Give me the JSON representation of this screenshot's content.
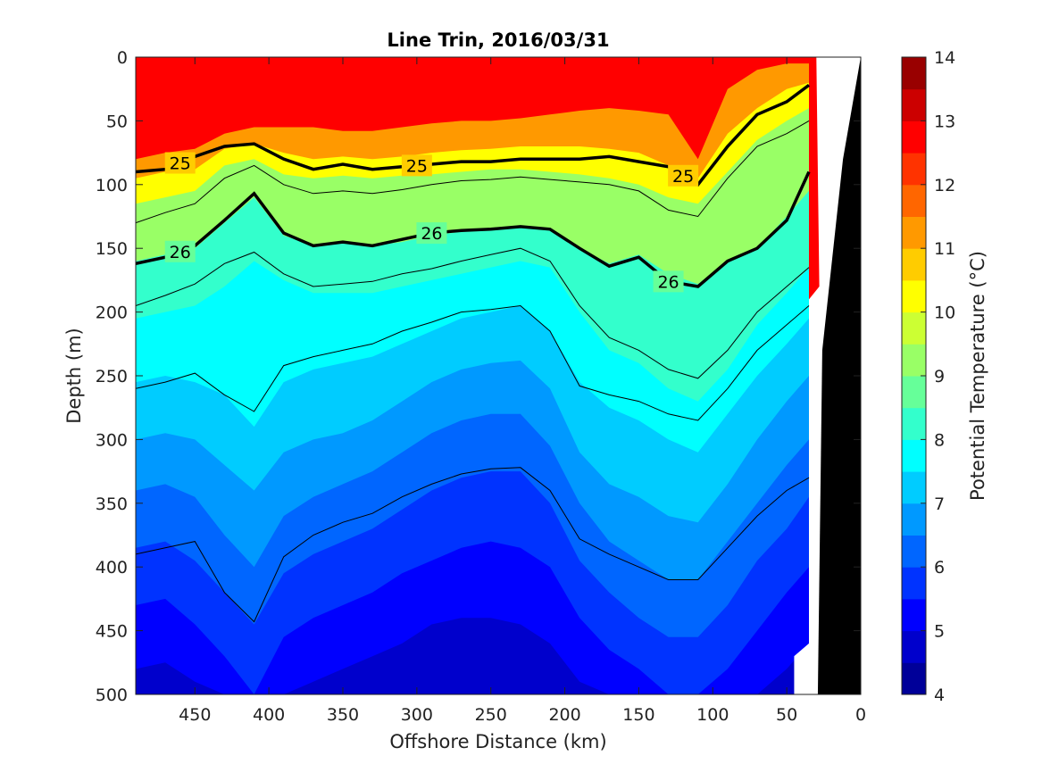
{
  "chart_data": {
    "type": "contour",
    "title": "Line Trin, 2016/03/31",
    "xlabel": "Offshore Distance (km)",
    "ylabel": "Depth (m)",
    "xlim": [
      490,
      0
    ],
    "ylim": [
      0,
      500
    ],
    "x_ticks": [
      450,
      400,
      350,
      300,
      250,
      200,
      150,
      100,
      50,
      0
    ],
    "y_ticks": [
      0,
      50,
      100,
      150,
      200,
      250,
      300,
      350,
      400,
      450,
      500
    ],
    "colorbar": {
      "label": "Potential Temperature (°C)",
      "range": [
        4,
        14
      ],
      "step": 0.5,
      "ticks": [
        14,
        13,
        12,
        11,
        10,
        9,
        8,
        7,
        6,
        5,
        4
      ]
    },
    "x": [
      490,
      470,
      450,
      430,
      410,
      390,
      370,
      350,
      330,
      310,
      290,
      270,
      250,
      230,
      210,
      190,
      170,
      150,
      130,
      110,
      90,
      70,
      50,
      35
    ],
    "isotherms_depth_m": [
      {
        "temp": 12.0,
        "depth": [
          80,
          75,
          72,
          60,
          55,
          55,
          55,
          58,
          58,
          55,
          52,
          50,
          50,
          48,
          45,
          42,
          40,
          42,
          45,
          80,
          25,
          10,
          5,
          5
        ]
      },
      {
        "temp": 11.0,
        "depth": [
          95,
          90,
          88,
          72,
          68,
          75,
          80,
          78,
          80,
          78,
          75,
          73,
          72,
          70,
          70,
          70,
          72,
          75,
          85,
          95,
          60,
          40,
          25,
          20
        ]
      },
      {
        "temp": 10.0,
        "depth": [
          115,
          110,
          105,
          85,
          80,
          92,
          95,
          93,
          95,
          93,
          92,
          90,
          88,
          88,
          90,
          92,
          95,
          100,
          110,
          115,
          90,
          65,
          50,
          40
        ]
      },
      {
        "temp": 9.0,
        "depth": [
          160,
          155,
          150,
          130,
          110,
          140,
          148,
          145,
          148,
          145,
          140,
          137,
          135,
          133,
          135,
          150,
          162,
          155,
          170,
          178,
          160,
          150,
          125,
          105
        ]
      },
      {
        "temp": 8.0,
        "depth": [
          205,
          200,
          195,
          180,
          160,
          175,
          185,
          185,
          185,
          180,
          175,
          170,
          165,
          160,
          165,
          200,
          230,
          240,
          260,
          270,
          245,
          210,
          185,
          165
        ]
      },
      {
        "temp": 7.5,
        "depth": [
          255,
          250,
          255,
          265,
          290,
          255,
          245,
          240,
          235,
          225,
          215,
          205,
          200,
          195,
          215,
          255,
          275,
          285,
          300,
          310,
          280,
          250,
          225,
          205
        ]
      },
      {
        "temp": 7.0,
        "depth": [
          300,
          295,
          300,
          320,
          340,
          310,
          300,
          295,
          285,
          270,
          255,
          245,
          240,
          238,
          260,
          310,
          335,
          345,
          360,
          365,
          335,
          300,
          270,
          250
        ]
      },
      {
        "temp": 6.5,
        "depth": [
          340,
          335,
          345,
          375,
          400,
          360,
          345,
          335,
          325,
          310,
          295,
          285,
          280,
          280,
          305,
          350,
          380,
          395,
          410,
          410,
          380,
          350,
          320,
          300
        ]
      },
      {
        "temp": 6.0,
        "depth": [
          385,
          380,
          395,
          420,
          445,
          405,
          390,
          380,
          370,
          355,
          340,
          330,
          325,
          325,
          350,
          395,
          420,
          440,
          455,
          455,
          430,
          395,
          370,
          345
        ]
      },
      {
        "temp": 5.5,
        "depth": [
          430,
          425,
          445,
          470,
          500,
          455,
          440,
          430,
          420,
          405,
          395,
          385,
          380,
          385,
          400,
          440,
          465,
          480,
          500,
          500,
          480,
          450,
          420,
          400
        ]
      },
      {
        "temp": 5.0,
        "depth": [
          480,
          475,
          490,
          500,
          500,
          500,
          490,
          480,
          470,
          460,
          445,
          440,
          440,
          445,
          460,
          490,
          500,
          500,
          500,
          500,
          500,
          500,
          480,
          460
        ]
      }
    ],
    "density_contours": [
      {
        "label": "25",
        "depth": [
          90,
          88,
          78,
          70,
          68,
          80,
          88,
          84,
          88,
          86,
          84,
          82,
          82,
          80,
          80,
          80,
          78,
          82,
          86,
          100,
          70,
          45,
          35,
          22
        ]
      },
      {
        "label": "26",
        "depth": [
          162,
          157,
          148,
          128,
          107,
          138,
          148,
          145,
          148,
          143,
          138,
          136,
          135,
          133,
          135,
          150,
          164,
          157,
          176,
          180,
          160,
          150,
          128,
          90
        ]
      }
    ],
    "thin_contours": [
      {
        "depth": [
          130,
          122,
          115,
          95,
          85,
          100,
          107,
          105,
          107,
          104,
          100,
          97,
          96,
          94,
          96,
          98,
          100,
          105,
          120,
          125,
          95,
          70,
          60,
          50
        ]
      },
      {
        "depth": [
          195,
          187,
          178,
          162,
          153,
          170,
          180,
          178,
          176,
          170,
          166,
          160,
          155,
          150,
          160,
          195,
          220,
          230,
          245,
          252,
          230,
          200,
          180,
          165
        ]
      },
      {
        "depth": [
          260,
          255,
          248,
          265,
          278,
          242,
          235,
          230,
          225,
          215,
          208,
          200,
          198,
          195,
          215,
          258,
          265,
          270,
          280,
          285,
          260,
          230,
          210,
          195
        ]
      },
      {
        "depth": [
          390,
          385,
          380,
          420,
          443,
          392,
          375,
          365,
          358,
          345,
          335,
          327,
          323,
          322,
          340,
          378,
          390,
          400,
          410,
          410,
          385,
          360,
          340,
          330
        ]
      }
    ],
    "shelf_black": "#000000"
  }
}
